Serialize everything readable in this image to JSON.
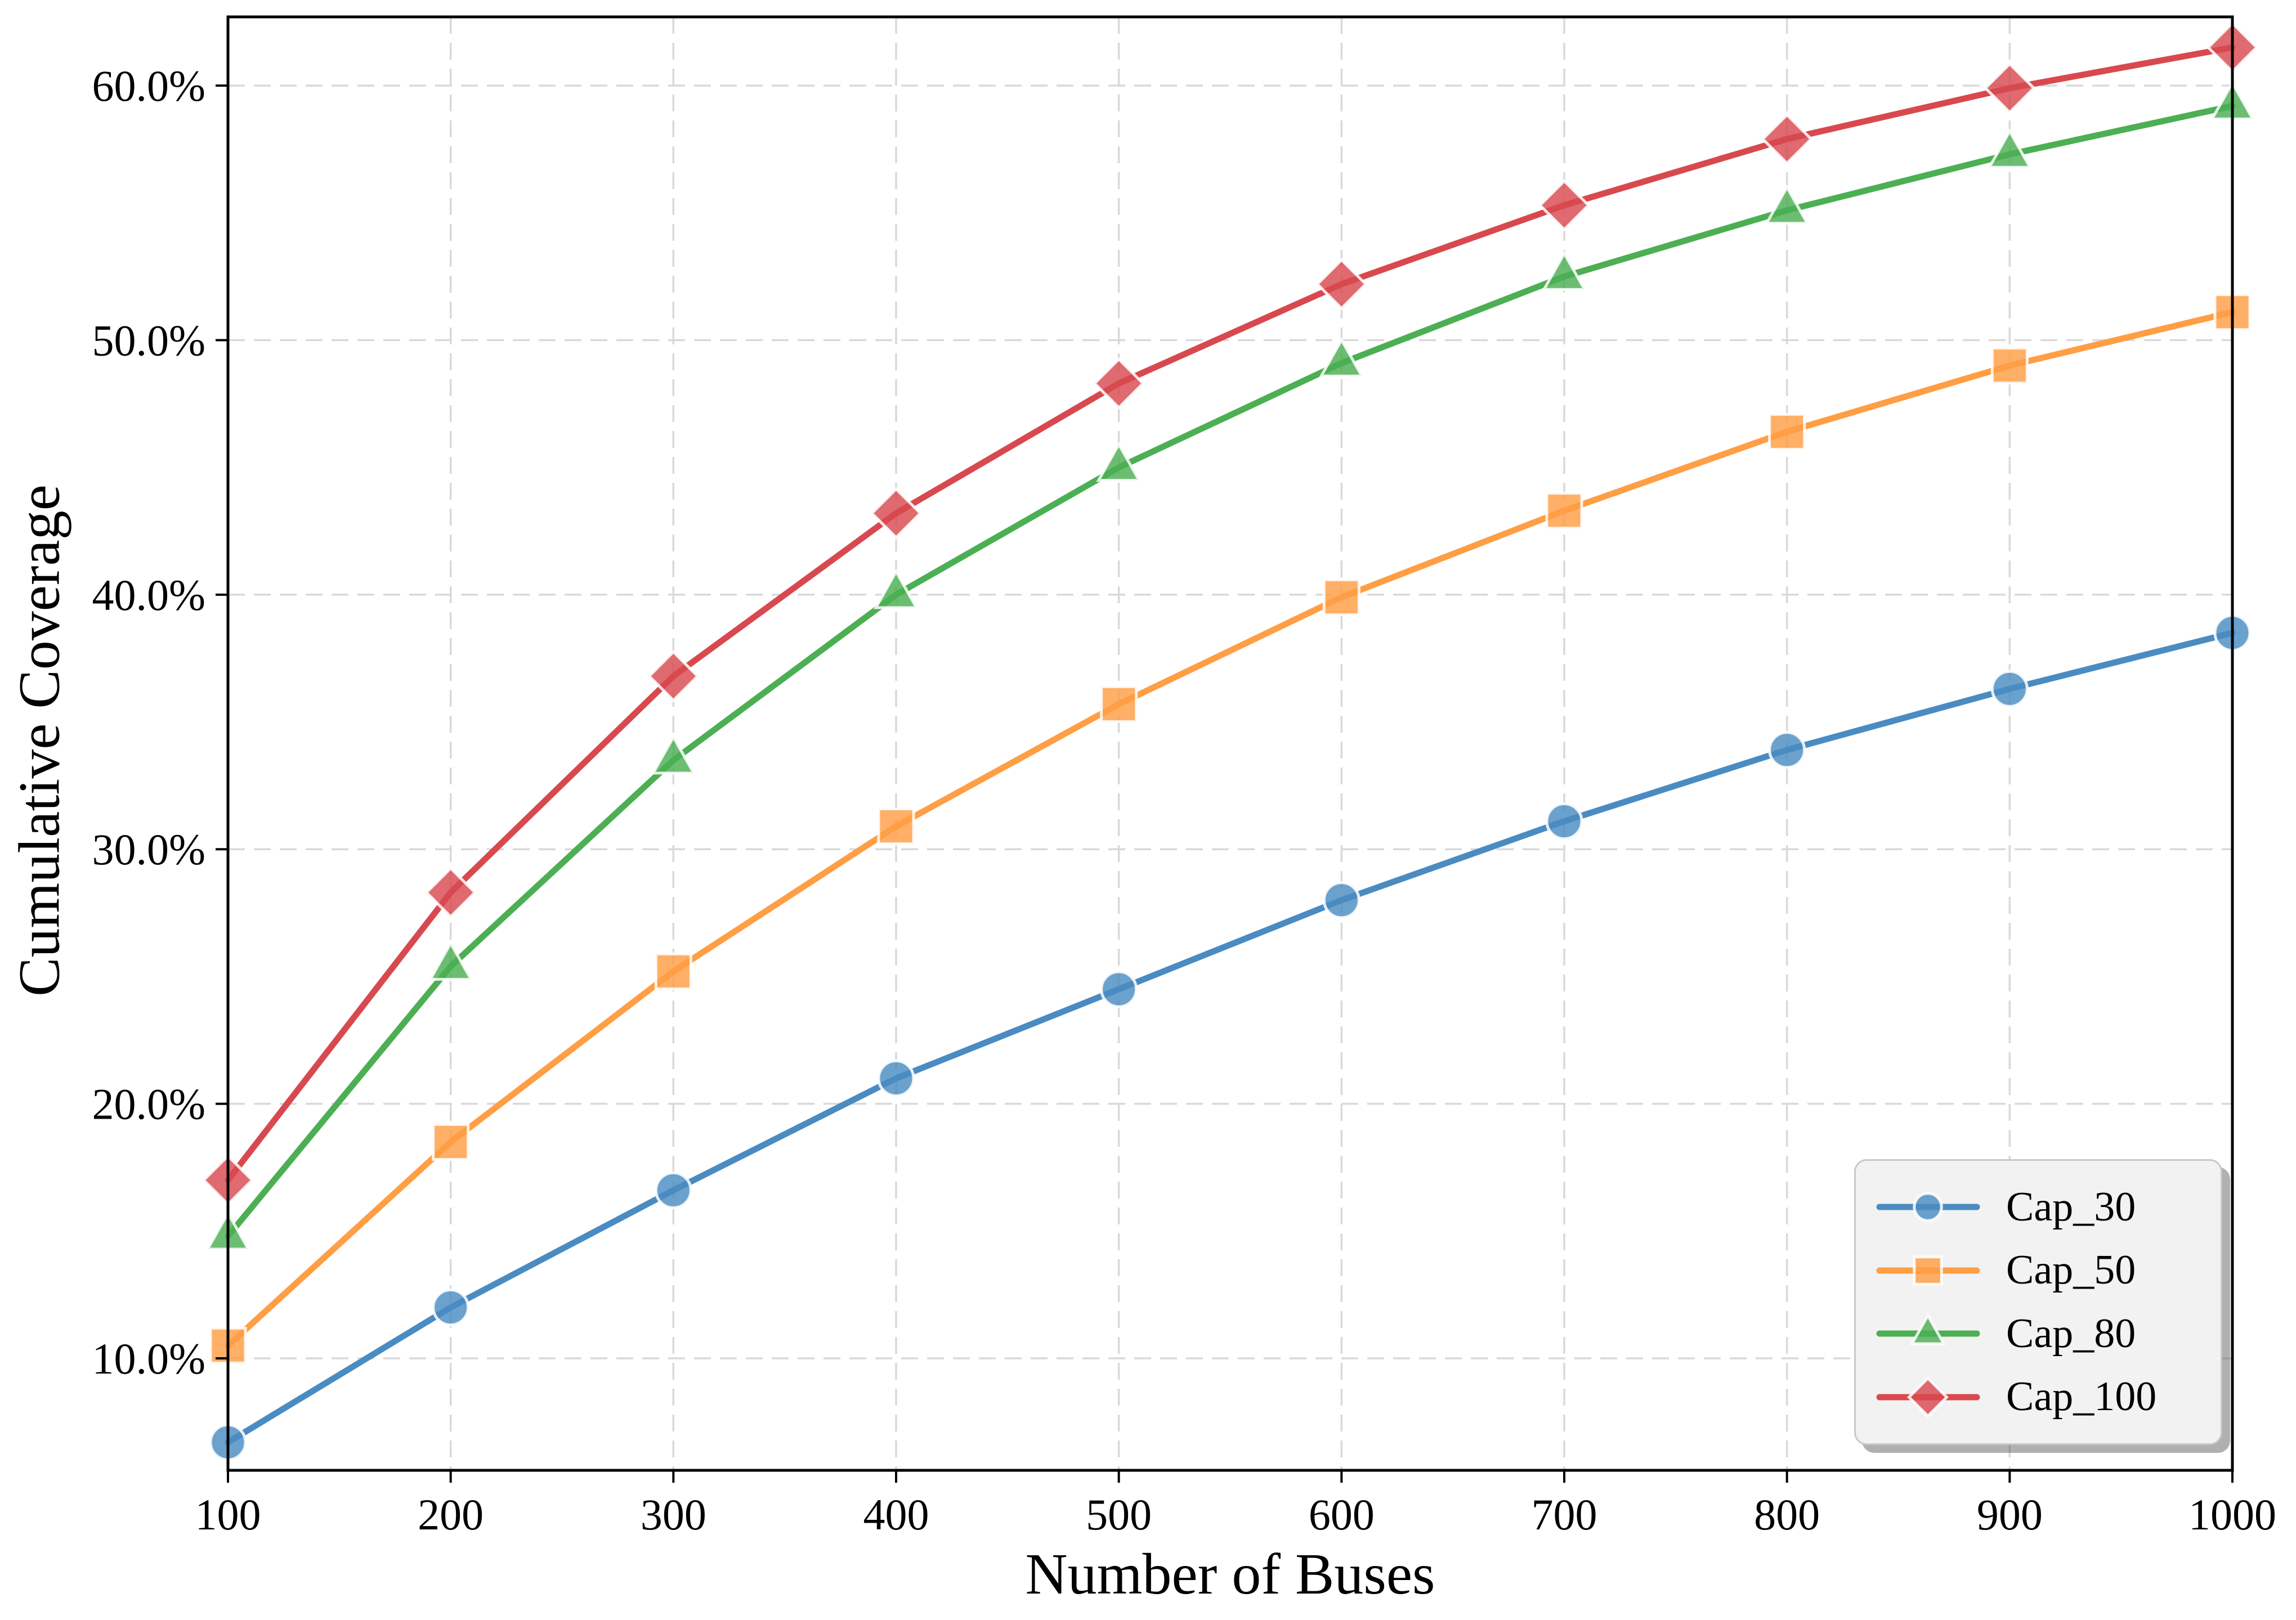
{
  "figure": {
    "background": "#ffffff"
  },
  "chart_data": {
    "type": "line",
    "title": "",
    "xlabel": "Number of Buses",
    "ylabel": "Cumulative Coverage",
    "x": [
      100,
      200,
      300,
      400,
      500,
      600,
      700,
      800,
      900,
      1000
    ],
    "x_tick_labels": [
      "100",
      "200",
      "300",
      "400",
      "500",
      "600",
      "700",
      "800",
      "900",
      "1000"
    ],
    "y_ticks": [
      10,
      20,
      30,
      40,
      50,
      60
    ],
    "y_tick_labels": [
      "10.0%",
      "20.0%",
      "30.0%",
      "40.0%",
      "50.0%",
      "60.0%"
    ],
    "xlim": [
      100,
      1000
    ],
    "ylim": [
      5.6,
      62.7
    ],
    "grid": true,
    "grid_style": "dashed",
    "legend_position": "lower right",
    "series": [
      {
        "name": "Cap_30",
        "color": "#4a8cc2",
        "marker": "circle",
        "values": [
          6.7,
          12.0,
          16.6,
          21.0,
          24.5,
          28.0,
          31.1,
          33.9,
          36.3,
          38.5
        ]
      },
      {
        "name": "Cap_50",
        "color": "#ff9e44",
        "marker": "square",
        "values": [
          10.5,
          18.5,
          25.2,
          30.9,
          35.7,
          39.9,
          43.3,
          46.4,
          49.0,
          51.1
        ]
      },
      {
        "name": "Cap_80",
        "color": "#4caf53",
        "marker": "triangle",
        "values": [
          14.8,
          25.4,
          33.5,
          40.0,
          45.0,
          49.1,
          52.5,
          55.1,
          57.3,
          59.2
        ]
      },
      {
        "name": "Cap_100",
        "color": "#d8494f",
        "marker": "diamond",
        "values": [
          17.0,
          28.3,
          36.8,
          43.2,
          48.3,
          52.2,
          55.3,
          57.9,
          59.9,
          61.5
        ]
      }
    ]
  },
  "colors": {
    "grid": "#d9d9d9",
    "spine": "#000000",
    "tick": "#000000",
    "legend_bg": "#f2f2f2",
    "legend_border": "#c8c8c8",
    "marker_edge": "rgba(255,255,255,0.85)"
  }
}
